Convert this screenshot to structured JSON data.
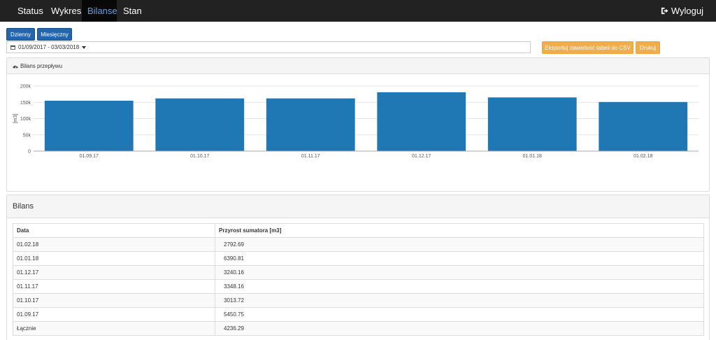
{
  "nav": {
    "items": [
      {
        "label": "Status",
        "active": false
      },
      {
        "label": "Wykres",
        "active": false
      },
      {
        "label": "Bilanse",
        "active": true
      },
      {
        "label": "Stan sumatora",
        "active": false
      }
    ],
    "logout_label": "Wyloguj",
    "logout_icon": "sign-out-icon"
  },
  "toolbar": {
    "daily_label": "Dzienny",
    "monthly_label": "Miesięczny",
    "date_range": "01/09/2017 - 03/03/2018",
    "export_label": "Eksportuj zawartość tabeli do CSV",
    "print_label": "Drukuj"
  },
  "chart_panel": {
    "title": "Bilans przepływu",
    "icon": "dashboard-icon"
  },
  "chart_data": {
    "type": "bar",
    "categories": [
      "01.09.17",
      "01.10.17",
      "01.11.17",
      "01.12.17",
      "01.01.18",
      "01.02.18"
    ],
    "values": [
      155000,
      162000,
      162000,
      181000,
      165000,
      151000
    ],
    "ylabel": "[m3]",
    "yticks": [
      "0",
      "50k",
      "100k",
      "150k",
      "200k"
    ],
    "ylim": [
      0,
      200000
    ],
    "grid": true,
    "color": "#1f77b4"
  },
  "table_panel": {
    "title": "Bilans",
    "columns": [
      "Data",
      "Przyrost sumatora [m3]"
    ],
    "rows": [
      [
        "01.02.18",
        "2792.69"
      ],
      [
        "01.01.18",
        "6390.81"
      ],
      [
        "01.12.17",
        "3240.16"
      ],
      [
        "01.11.17",
        "3348.16"
      ],
      [
        "01.10.17",
        "3013.72"
      ],
      [
        "01.09.17",
        "5450.75"
      ],
      [
        "Łącznie",
        "4236.29"
      ]
    ]
  },
  "colors": {
    "navbar": "#222222",
    "nav_active_text": "#5ea3e0",
    "primary_button": "#2565ae",
    "warning_button": "#f0ad4e",
    "bar": "#1f77b4"
  }
}
